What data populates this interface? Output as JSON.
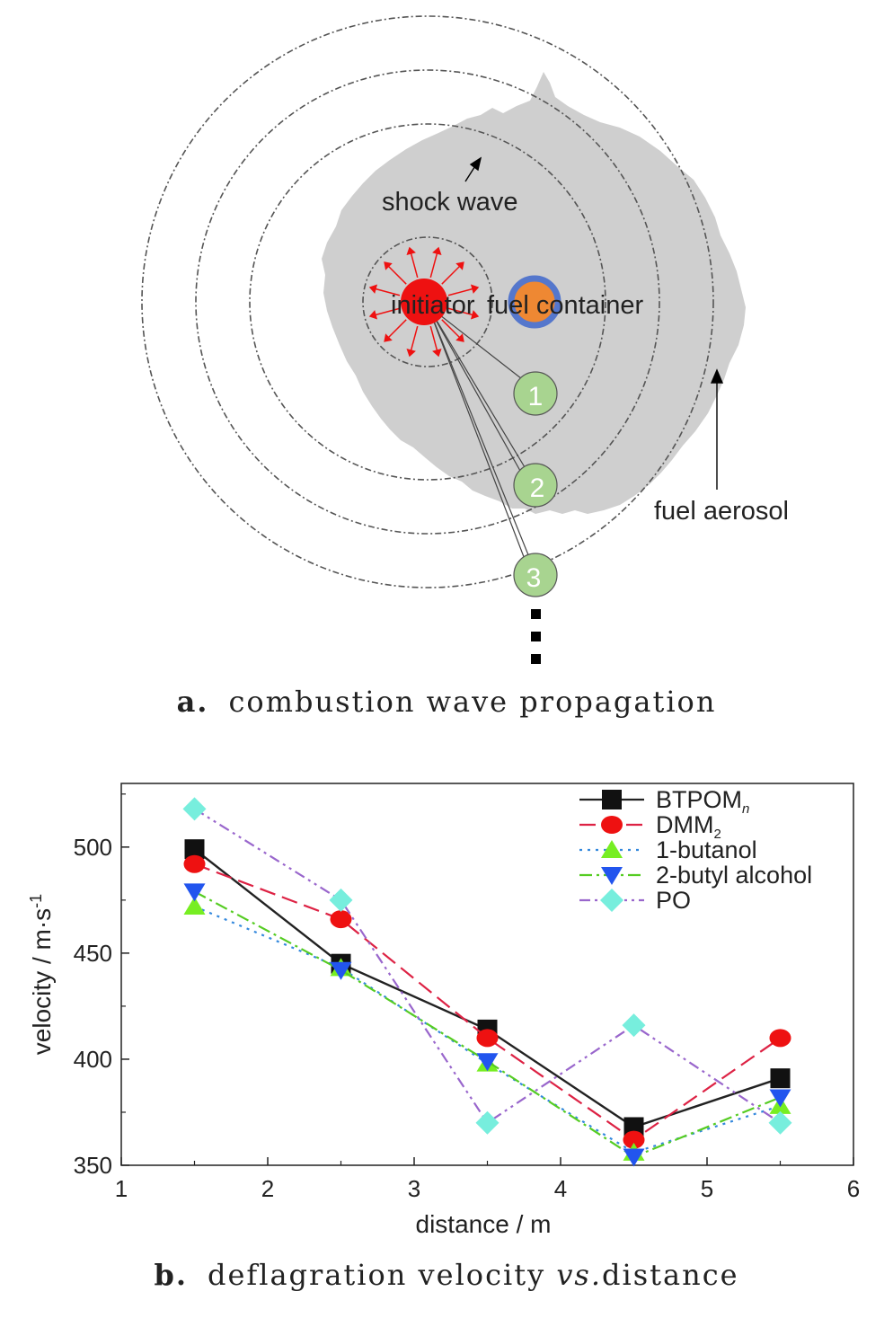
{
  "diagram": {
    "labels": {
      "shock_wave": "shock wave",
      "initiator": "initiator",
      "fuel_container": "fuel container",
      "fuel_aerosol": "fuel aerosol",
      "gauge_1": "1",
      "gauge_2": "2",
      "gauge_3": "3"
    },
    "caption_letter": "a.",
    "caption_text": "combustion wave propagation",
    "colors": {
      "aerosol": "#cfcfcf",
      "initiator": "#ee1111",
      "container_fill": "#ee8833",
      "container_ring": "#5577cc",
      "gauge_fill": "#a8d490"
    }
  },
  "chart_data": {
    "type": "line",
    "xlabel": "distance / m",
    "ylabel": "velocity / m·s",
    "ylabel_sup": "-1",
    "xlim": [
      1,
      6
    ],
    "ylim": [
      350,
      530
    ],
    "xticks": [
      1,
      2,
      3,
      4,
      5,
      6
    ],
    "yticks": [
      350,
      400,
      450,
      500
    ],
    "legend_position": "top-right",
    "x": [
      1.5,
      2.5,
      3.5,
      4.5,
      5.5
    ],
    "series": [
      {
        "name": "BTPOM",
        "name_sub": "n",
        "values": [
          499,
          445,
          414,
          368,
          391
        ],
        "color": "#222222",
        "marker": "square",
        "dash": ""
      },
      {
        "name": "DMM",
        "name_sub": "2",
        "values": [
          492,
          466,
          410,
          362,
          410
        ],
        "color": "#dd2244",
        "marker": "circle",
        "dash": "18,8"
      },
      {
        "name": "1-butanol",
        "values": [
          472,
          443,
          398,
          356,
          378
        ],
        "color": "#3388dd",
        "marker": "triangle-up",
        "dash": "3,6"
      },
      {
        "name": "2-butyl alcohol",
        "values": [
          479,
          442,
          399,
          354,
          382
        ],
        "color": "#55cc22",
        "marker": "triangle-down",
        "dash": "14,5,3,5"
      },
      {
        "name": "PO",
        "values": [
          518,
          475,
          370,
          416,
          370
        ],
        "color": "#9966cc",
        "marker": "diamond",
        "dash": "12,5,3,5,3,5"
      }
    ],
    "marker_colors": {
      "square": "#111111",
      "circle": "#ee1111",
      "triangle-up": "#77ee22",
      "triangle-down": "#2255ee",
      "diamond": "#77eedd"
    },
    "caption_letter": "b.",
    "caption_text": "deflagration velocity",
    "caption_italic": "vs.",
    "caption_tail": "distance"
  }
}
